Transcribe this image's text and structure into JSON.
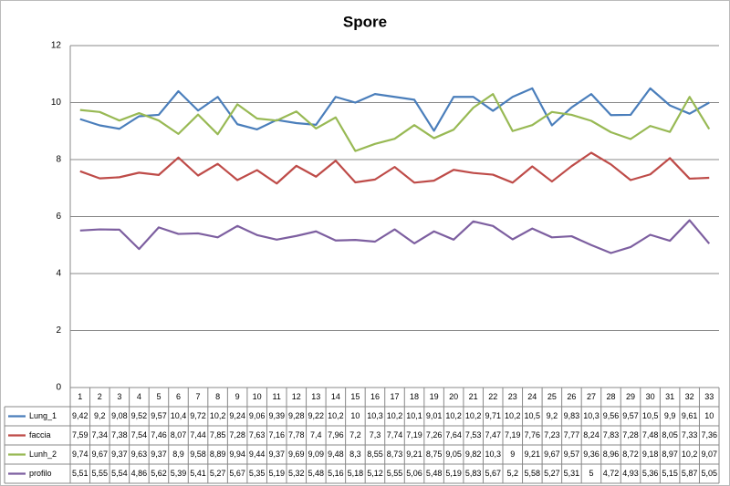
{
  "chart_data": {
    "type": "line",
    "title": "Spore",
    "categories": [
      "1",
      "2",
      "3",
      "4",
      "5",
      "6",
      "7",
      "8",
      "9",
      "10",
      "11",
      "12",
      "13",
      "14",
      "15",
      "16",
      "17",
      "18",
      "19",
      "20",
      "21",
      "22",
      "23",
      "24",
      "25",
      "26",
      "27",
      "28",
      "29",
      "30",
      "31",
      "32",
      "33"
    ],
    "ylim": [
      0,
      12
    ],
    "yticks": [
      0,
      2,
      4,
      6,
      8,
      10,
      12
    ],
    "grid": true,
    "series": [
      {
        "name": "Lung_1",
        "color": "#4a7ebb",
        "values": [
          9.42,
          9.2,
          9.08,
          9.52,
          9.57,
          10.4,
          9.72,
          10.2,
          9.24,
          9.06,
          9.39,
          9.28,
          9.22,
          10.2,
          10,
          10.3,
          10.2,
          10.1,
          9.01,
          10.2,
          10.2,
          9.71,
          10.2,
          10.5,
          9.2,
          9.83,
          10.3,
          9.56,
          9.57,
          10.5,
          9.9,
          9.61,
          10
        ],
        "value_labels": [
          "9,42",
          "9,2",
          "9,08",
          "9,52",
          "9,57",
          "10,4",
          "9,72",
          "10,2",
          "9,24",
          "9,06",
          "9,39",
          "9,28",
          "9,22",
          "10,2",
          "10",
          "10,3",
          "10,2",
          "10,1",
          "9,01",
          "10,2",
          "10,2",
          "9,71",
          "10,2",
          "10,5",
          "9,2",
          "9,83",
          "10,3",
          "9,56",
          "9,57",
          "10,5",
          "9,9",
          "9,61",
          "10"
        ]
      },
      {
        "name": "faccia",
        "color": "#be4b48",
        "values": [
          7.59,
          7.34,
          7.38,
          7.54,
          7.46,
          8.07,
          7.44,
          7.85,
          7.28,
          7.63,
          7.16,
          7.78,
          7.4,
          7.96,
          7.2,
          7.3,
          7.74,
          7.19,
          7.26,
          7.64,
          7.53,
          7.47,
          7.19,
          7.76,
          7.23,
          7.77,
          8.24,
          7.83,
          7.28,
          7.48,
          8.05,
          7.33,
          7.36
        ],
        "value_labels": [
          "7,59",
          "7,34",
          "7,38",
          "7,54",
          "7,46",
          "8,07",
          "7,44",
          "7,85",
          "7,28",
          "7,63",
          "7,16",
          "7,78",
          "7,4",
          "7,96",
          "7,2",
          "7,3",
          "7,74",
          "7,19",
          "7,26",
          "7,64",
          "7,53",
          "7,47",
          "7,19",
          "7,76",
          "7,23",
          "7,77",
          "8,24",
          "7,83",
          "7,28",
          "7,48",
          "8,05",
          "7,33",
          "7,36"
        ]
      },
      {
        "name": "Lunh_2",
        "color": "#98b954",
        "values": [
          9.74,
          9.67,
          9.37,
          9.63,
          9.37,
          8.9,
          9.58,
          8.89,
          9.94,
          9.44,
          9.37,
          9.69,
          9.09,
          9.48,
          8.3,
          8.55,
          8.73,
          9.21,
          8.75,
          9.05,
          9.82,
          10.3,
          9,
          9.21,
          9.67,
          9.57,
          9.36,
          8.96,
          8.72,
          9.18,
          8.97,
          10.2,
          9.07
        ],
        "value_labels": [
          "9,74",
          "9,67",
          "9,37",
          "9,63",
          "9,37",
          "8,9",
          "9,58",
          "8,89",
          "9,94",
          "9,44",
          "9,37",
          "9,69",
          "9,09",
          "9,48",
          "8,3",
          "8,55",
          "8,73",
          "9,21",
          "8,75",
          "9,05",
          "9,82",
          "10,3",
          "9",
          "9,21",
          "9,67",
          "9,57",
          "9,36",
          "8,96",
          "8,72",
          "9,18",
          "8,97",
          "10,2",
          "9,07"
        ]
      },
      {
        "name": "profilo",
        "color": "#7d5fa0",
        "values": [
          5.51,
          5.55,
          5.54,
          4.86,
          5.62,
          5.39,
          5.41,
          5.27,
          5.67,
          5.35,
          5.19,
          5.32,
          5.48,
          5.16,
          5.18,
          5.12,
          5.55,
          5.06,
          5.48,
          5.19,
          5.83,
          5.67,
          5.2,
          5.58,
          5.27,
          5.31,
          5,
          4.72,
          4.93,
          5.36,
          5.15,
          5.87,
          5.05
        ],
        "value_labels": [
          "5,51",
          "5,55",
          "5,54",
          "4,86",
          "5,62",
          "5,39",
          "5,41",
          "5,27",
          "5,67",
          "5,35",
          "5,19",
          "5,32",
          "5,48",
          "5,16",
          "5,18",
          "5,12",
          "5,55",
          "5,06",
          "5,48",
          "5,19",
          "5,83",
          "5,67",
          "5,2",
          "5,58",
          "5,27",
          "5,31",
          "5",
          "4,72",
          "4,93",
          "5,36",
          "5,15",
          "5,87",
          "5,05"
        ]
      }
    ]
  }
}
